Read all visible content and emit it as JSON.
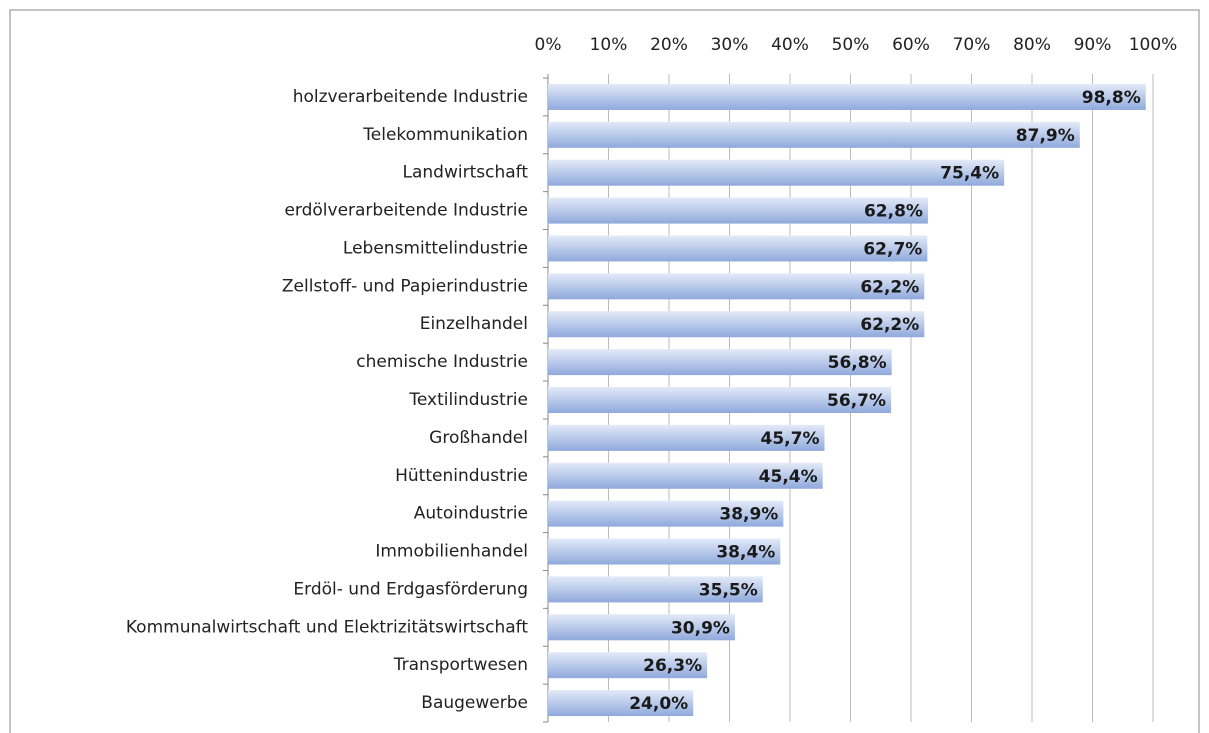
{
  "chart_data": {
    "type": "barh",
    "categories": [
      "holzverarbeitende Industrie",
      "Telekommunikation",
      "Landwirtschaft",
      "erdölverarbeitende Industrie",
      "Lebensmittelindustrie",
      "Zellstoff- und Papierindustrie",
      "Einzelhandel",
      "chemische Industrie",
      "Textilindustrie",
      "Großhandel",
      "Hüttenindustrie",
      "Autoindustrie",
      "Immobilienhandel",
      "Erdöl- und Erdgasförderung",
      "Kommunalwirtschaft und Elektrizitätswirtschaft",
      "Transportwesen",
      "Baugewerbe"
    ],
    "values": [
      98.8,
      87.9,
      75.4,
      62.8,
      62.7,
      62.2,
      62.2,
      56.8,
      56.7,
      45.7,
      45.4,
      38.9,
      38.4,
      35.5,
      30.9,
      26.3,
      24.0
    ],
    "value_labels": [
      "98,8%",
      "87,9%",
      "75,4%",
      "62,8%",
      "62,7%",
      "62,2%",
      "62,2%",
      "56,8%",
      "56,7%",
      "45,7%",
      "45,4%",
      "38,9%",
      "38,4%",
      "35,5%",
      "30,9%",
      "26,3%",
      "24,0%"
    ],
    "color": "#8fa9dc",
    "xlim": [
      0,
      100
    ],
    "xticks": [
      {
        "value": 0,
        "label": "0%"
      },
      {
        "value": 10,
        "label": "10%"
      },
      {
        "value": 20,
        "label": "20%"
      },
      {
        "value": 30,
        "label": "30%"
      },
      {
        "value": 40,
        "label": "40%"
      },
      {
        "value": 50,
        "label": "50%"
      },
      {
        "value": 60,
        "label": "60%"
      },
      {
        "value": 70,
        "label": "70%"
      },
      {
        "value": 80,
        "label": "80%"
      },
      {
        "value": 90,
        "label": "90%"
      },
      {
        "value": 100,
        "label": "100%"
      }
    ],
    "grid": true
  }
}
